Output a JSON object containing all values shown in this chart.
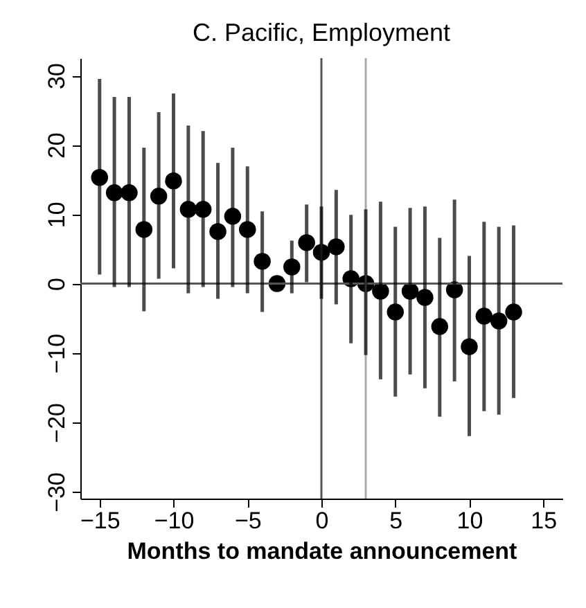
{
  "chart_data": {
    "type": "scatter",
    "title": "C. Pacific, Employment",
    "xlabel": "Months to mandate announcement",
    "x": [
      -15,
      -14,
      -13,
      -12,
      -11,
      -10,
      -9,
      -8,
      -7,
      -6,
      -5,
      -4,
      -3,
      -2,
      -1,
      0,
      1,
      2,
      3,
      4,
      5,
      6,
      7,
      8,
      9,
      10,
      11,
      12,
      13
    ],
    "series": [
      {
        "color": "#000000",
        "values": [
          15.3,
          13.1,
          13.1,
          7.8,
          12.6,
          14.8,
          10.7,
          10.7,
          7.5,
          9.7,
          7.8,
          3.2,
          0,
          2.4,
          5.9,
          4.5,
          5.3,
          0.7,
          0,
          -1.1,
          -4.1,
          -1.1,
          -2,
          -6.2,
          -0.9,
          -9.1,
          -4.7,
          -5.4,
          -4.1
        ],
        "errors": [
          [
            1.3,
            29.5
          ],
          [
            -0.5,
            26.9
          ],
          [
            -0.5,
            26.9
          ],
          [
            -4,
            19.6
          ],
          [
            0.7,
            24.7
          ],
          [
            2.2,
            27.4
          ],
          [
            -1.4,
            22.8
          ],
          [
            -0.5,
            22
          ],
          [
            -2.2,
            17.4
          ],
          [
            -0.5,
            19.6
          ],
          [
            -1.4,
            16.9
          ],
          [
            -4.1,
            10.4
          ],
          null,
          [
            -1.4,
            6.2
          ],
          [
            0.2,
            11.4
          ],
          [
            -2.2,
            11.1
          ],
          [
            -3,
            13.5
          ],
          [
            -8.6,
            9.9
          ],
          [
            -10.3,
            10.7
          ],
          [
            -13.8,
            11.8
          ],
          [
            -16.3,
            8.2
          ],
          [
            -13.1,
            10.9
          ],
          [
            -15.1,
            11.1
          ],
          [
            -19.2,
            6.6
          ],
          [
            -14.1,
            12.1
          ],
          [
            -22,
            4
          ],
          [
            -18.4,
            8.9
          ],
          [
            -18.9,
            8.2
          ],
          [
            -16.5,
            8.4
          ]
        ]
      }
    ],
    "marker": "circle",
    "xlim": [
      -16.3,
      16.3
    ],
    "xticks": [
      -15,
      -10,
      -5,
      0,
      5,
      10,
      15
    ],
    "ylim": [
      -31,
      32.5
    ],
    "yticks": [
      -30,
      -20,
      -10,
      0,
      10,
      20,
      30
    ],
    "ref_lines": [
      {
        "axis": "x",
        "value": 0,
        "color": "#555555"
      },
      {
        "axis": "x",
        "value": 3,
        "color": "#aaaaaa"
      },
      {
        "axis": "y",
        "value": 0,
        "color": "#555555"
      }
    ],
    "grid": false
  }
}
